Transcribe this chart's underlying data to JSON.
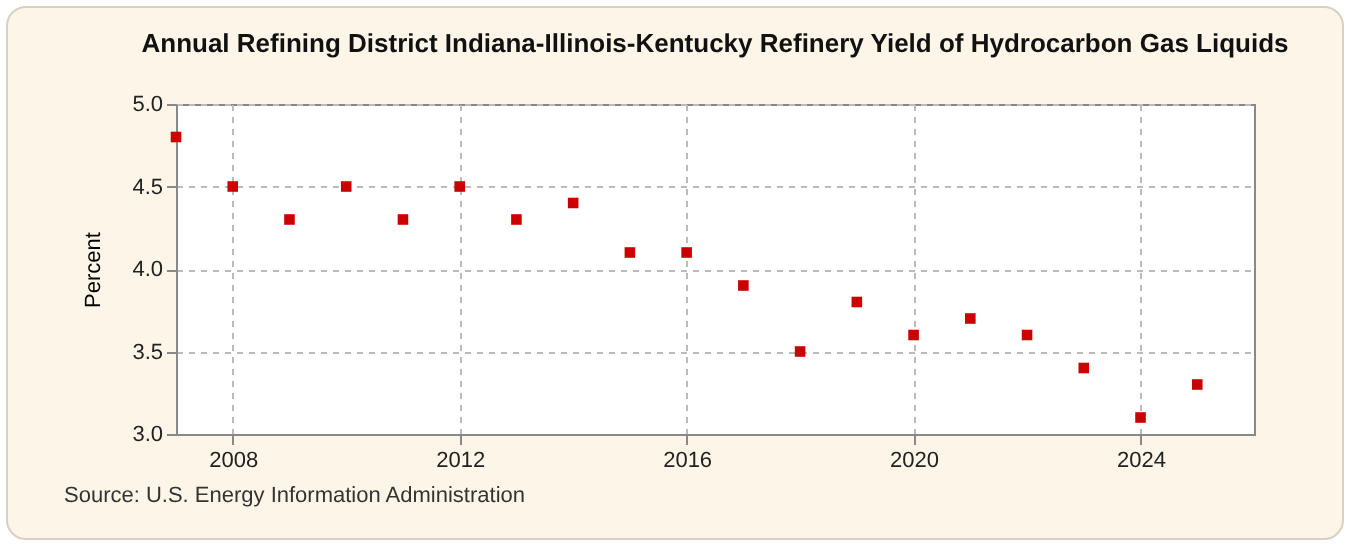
{
  "chart_data": {
    "type": "scatter",
    "title": "Annual Refining District Indiana-Illinois-Kentucky Refinery Yield of Hydrocarbon Gas Liquids",
    "ylabel": "Percent",
    "annotations": [
      "Source: U.S. Energy Information Administration"
    ],
    "x": [
      2007,
      2008,
      2009,
      2010,
      2011,
      2012,
      2013,
      2014,
      2015,
      2016,
      2017,
      2018,
      2019,
      2020,
      2021,
      2022,
      2023,
      2024,
      2025
    ],
    "series": [
      {
        "color": "#cc0000",
        "values": [
          4.8,
          4.5,
          4.3,
          4.5,
          4.3,
          4.5,
          4.3,
          4.4,
          4.1,
          4.1,
          3.9,
          3.5,
          3.8,
          3.6,
          3.7,
          3.6,
          3.4,
          3.1,
          3.3
        ]
      }
    ],
    "xlim": [
      2007,
      2026
    ],
    "xticks": [
      2008,
      2012,
      2016,
      2020,
      2024
    ],
    "ylim": [
      3,
      5
    ],
    "yticks": [
      {
        "value": 3,
        "label": "3.0"
      },
      3.5,
      {
        "value": 4,
        "label": "4.0"
      },
      4.5,
      {
        "value": 5,
        "label": "5.0"
      }
    ],
    "grid": true,
    "marker": "square"
  }
}
